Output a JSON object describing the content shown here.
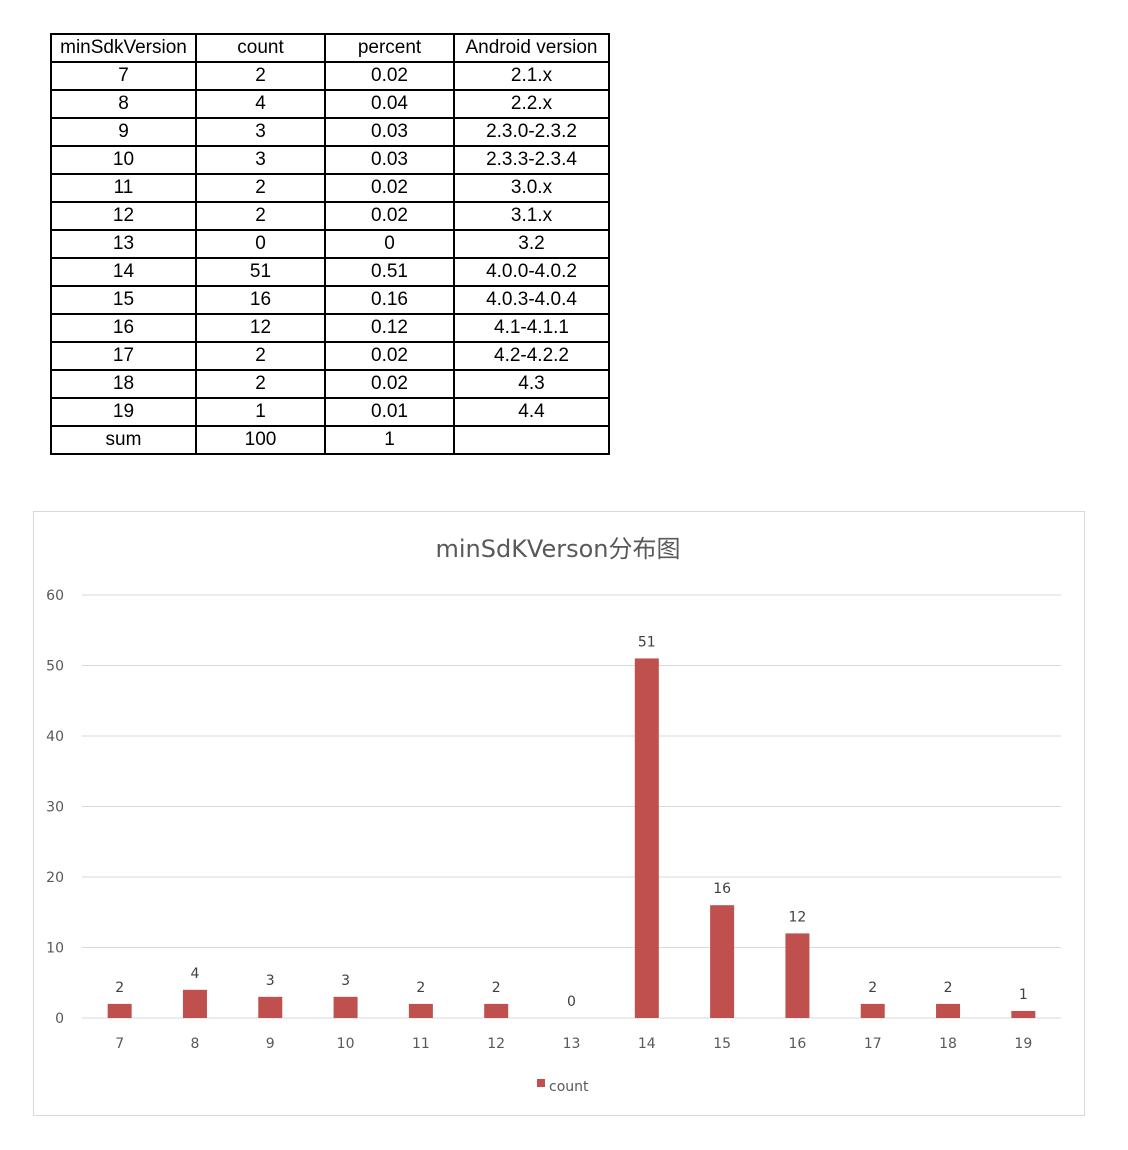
{
  "table": {
    "headers": [
      "minSdkVersion",
      "count",
      "percent",
      "Android version"
    ],
    "rows": [
      [
        "7",
        "2",
        "0.02",
        "2.1.x"
      ],
      [
        "8",
        "4",
        "0.04",
        "2.2.x"
      ],
      [
        "9",
        "3",
        "0.03",
        "2.3.0-2.3.2"
      ],
      [
        "10",
        "3",
        "0.03",
        "2.3.3-2.3.4"
      ],
      [
        "11",
        "2",
        "0.02",
        "3.0.x"
      ],
      [
        "12",
        "2",
        "0.02",
        "3.1.x"
      ],
      [
        "13",
        "0",
        "0",
        "3.2"
      ],
      [
        "14",
        "51",
        "0.51",
        "4.0.0-4.0.2"
      ],
      [
        "15",
        "16",
        "0.16",
        "4.0.3-4.0.4"
      ],
      [
        "16",
        "12",
        "0.12",
        "4.1-4.1.1"
      ],
      [
        "17",
        "2",
        "0.02",
        "4.2-4.2.2"
      ],
      [
        "18",
        "2",
        "0.02",
        "4.3"
      ],
      [
        "19",
        "1",
        "0.01",
        "4.4"
      ],
      [
        "sum",
        "100",
        "1",
        ""
      ]
    ]
  },
  "chart_data": {
    "type": "bar",
    "title": "minSdKVerson分布图",
    "xlabel": "",
    "ylabel": "",
    "categories": [
      "7",
      "8",
      "9",
      "10",
      "11",
      "12",
      "13",
      "14",
      "15",
      "16",
      "17",
      "18",
      "19"
    ],
    "series": [
      {
        "name": "count",
        "values": [
          2,
          4,
          3,
          3,
          2,
          2,
          0,
          51,
          16,
          12,
          2,
          2,
          1
        ],
        "color": "#c0504d"
      }
    ],
    "ylim": [
      0,
      60
    ],
    "yticks": [
      "0",
      "10",
      "20",
      "30",
      "40",
      "50",
      "60"
    ],
    "grid": true,
    "data_labels": true,
    "legend_position": "bottom",
    "colors": {
      "grid": "#d9d9d9",
      "axis_text": "#595959",
      "title": "#595959"
    }
  }
}
